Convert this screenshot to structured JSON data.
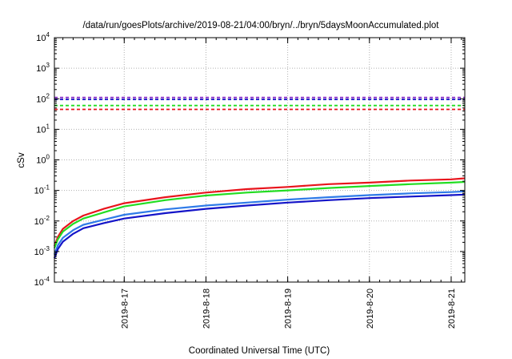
{
  "chart_data": {
    "type": "line",
    "title": "/data/run/goesPlots/archive/2019-08-21/04:00/bryn/../bryn/5daysMoonAccumulated.plot",
    "xlabel": "Coordinated Universal Time (UTC)",
    "ylabel": "cSv",
    "y_scale": "log",
    "ylim": [
      0.0001,
      10000
    ],
    "y_ticks": [
      {
        "mantissa": "10",
        "exp": "-4",
        "value": 0.0001
      },
      {
        "mantissa": "10",
        "exp": "-3",
        "value": 0.001
      },
      {
        "mantissa": "10",
        "exp": "-2",
        "value": 0.01
      },
      {
        "mantissa": "10",
        "exp": "-1",
        "value": 0.1
      },
      {
        "mantissa": "10",
        "exp": "0",
        "value": 1
      },
      {
        "mantissa": "10",
        "exp": "1",
        "value": 10
      },
      {
        "mantissa": "10",
        "exp": "2",
        "value": 100
      },
      {
        "mantissa": "10",
        "exp": "3",
        "value": 1000
      },
      {
        "mantissa": "10",
        "exp": "4",
        "value": 10000
      }
    ],
    "xlim": [
      "2019-08-16 03:30",
      "2019-08-21 04:00"
    ],
    "x_ticks": [
      {
        "label": "2019-8-17",
        "value": "2019-08-17 00:00"
      },
      {
        "label": "2019-8-18",
        "value": "2019-08-18 00:00"
      },
      {
        "label": "2019-8-19",
        "value": "2019-08-19 00:00"
      },
      {
        "label": "2019-8-20",
        "value": "2019-08-20 00:00"
      },
      {
        "label": "2019-8-21",
        "value": "2019-08-21 00:00"
      }
    ],
    "grid": true,
    "legend": "none",
    "series": [
      {
        "color": "#e8141c",
        "x": [
          "2019-08-16 03:30",
          "2019-08-16 04:30",
          "2019-08-16 06:00",
          "2019-08-16 09:00",
          "2019-08-16 12:00",
          "2019-08-16 18:00",
          "2019-08-17 00:00",
          "2019-08-17 12:00",
          "2019-08-18 00:00",
          "2019-08-18 12:00",
          "2019-08-19 00:00",
          "2019-08-19 12:00",
          "2019-08-20 00:00",
          "2019-08-20 12:00",
          "2019-08-21 00:00",
          "2019-08-21 04:00"
        ],
        "values": [
          0.0015,
          0.003,
          0.0055,
          0.01,
          0.015,
          0.025,
          0.038,
          0.06,
          0.085,
          0.11,
          0.13,
          0.16,
          0.18,
          0.21,
          0.23,
          0.25
        ]
      },
      {
        "color": "#22dd22",
        "x": [
          "2019-08-16 03:30",
          "2019-08-16 04:30",
          "2019-08-16 06:00",
          "2019-08-16 09:00",
          "2019-08-16 12:00",
          "2019-08-16 18:00",
          "2019-08-17 00:00",
          "2019-08-17 12:00",
          "2019-08-18 00:00",
          "2019-08-18 12:00",
          "2019-08-19 00:00",
          "2019-08-19 12:00",
          "2019-08-20 00:00",
          "2019-08-20 12:00",
          "2019-08-21 00:00",
          "2019-08-21 04:00"
        ],
        "values": [
          0.0013,
          0.0025,
          0.0045,
          0.008,
          0.012,
          0.019,
          0.03,
          0.048,
          0.068,
          0.085,
          0.1,
          0.12,
          0.14,
          0.16,
          0.18,
          0.19
        ]
      },
      {
        "color": "#2f7be8",
        "x": [
          "2019-08-16 03:30",
          "2019-08-16 04:30",
          "2019-08-16 06:00",
          "2019-08-16 09:00",
          "2019-08-16 12:00",
          "2019-08-16 18:00",
          "2019-08-17 00:00",
          "2019-08-17 12:00",
          "2019-08-18 00:00",
          "2019-08-18 12:00",
          "2019-08-19 00:00",
          "2019-08-19 12:00",
          "2019-08-20 00:00",
          "2019-08-20 12:00",
          "2019-08-21 00:00",
          "2019-08-21 04:00"
        ],
        "values": [
          0.0008,
          0.0016,
          0.0028,
          0.005,
          0.0075,
          0.011,
          0.016,
          0.024,
          0.032,
          0.04,
          0.05,
          0.06,
          0.07,
          0.08,
          0.088,
          0.093
        ]
      },
      {
        "color": "#1414c8",
        "x": [
          "2019-08-16 03:30",
          "2019-08-16 04:30",
          "2019-08-16 06:00",
          "2019-08-16 09:00",
          "2019-08-16 12:00",
          "2019-08-16 18:00",
          "2019-08-17 00:00",
          "2019-08-17 12:00",
          "2019-08-18 00:00",
          "2019-08-18 12:00",
          "2019-08-19 00:00",
          "2019-08-19 12:00",
          "2019-08-20 00:00",
          "2019-08-20 12:00",
          "2019-08-21 00:00",
          "2019-08-21 04:00"
        ],
        "values": [
          0.0006,
          0.0012,
          0.0021,
          0.0038,
          0.0058,
          0.0085,
          0.012,
          0.018,
          0.025,
          0.032,
          0.04,
          0.048,
          0.056,
          0.063,
          0.07,
          0.073
        ]
      }
    ],
    "reference_lines": [
      {
        "value": 110,
        "color": "#8b2fc9",
        "style": "dashed"
      },
      {
        "value": 95,
        "color": "#1414c8",
        "style": "dashed"
      },
      {
        "value": 60,
        "color": "#22dd22",
        "style": "dashed"
      },
      {
        "value": 45,
        "color": "#e8141c",
        "style": "dashed"
      }
    ]
  }
}
